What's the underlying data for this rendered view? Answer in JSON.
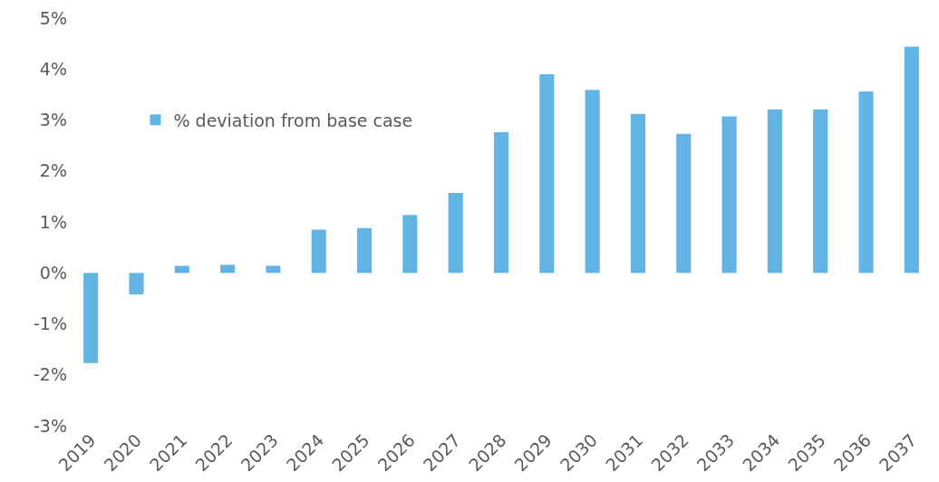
{
  "chart_data": {
    "type": "bar",
    "categories": [
      "2019",
      "2020",
      "2021",
      "2022",
      "2023",
      "2024",
      "2025",
      "2026",
      "2027",
      "2028",
      "2029",
      "2030",
      "2031",
      "2032",
      "2033",
      "2034",
      "2035",
      "2036",
      "2037"
    ],
    "series": [
      {
        "name": "% deviation from base case",
        "color": "#62b4e4",
        "values": [
          -1.77,
          -0.42,
          0.14,
          0.16,
          0.14,
          0.85,
          0.88,
          1.14,
          1.57,
          2.76,
          3.9,
          3.59,
          3.12,
          2.73,
          3.07,
          3.21,
          3.21,
          3.56,
          4.44
        ]
      }
    ],
    "ylim": [
      -3,
      5
    ],
    "yticks": [
      {
        "value": -3,
        "label": "-3%"
      },
      {
        "value": -2,
        "label": "-2%"
      },
      {
        "value": -1,
        "label": "-1%"
      },
      {
        "value": 0,
        "label": "0%"
      },
      {
        "value": 1,
        "label": "1%"
      },
      {
        "value": 2,
        "label": "2%"
      },
      {
        "value": 3,
        "label": "3%"
      },
      {
        "value": 4,
        "label": "4%"
      },
      {
        "value": 5,
        "label": "5%"
      }
    ],
    "grid": false,
    "legend": "top left"
  }
}
